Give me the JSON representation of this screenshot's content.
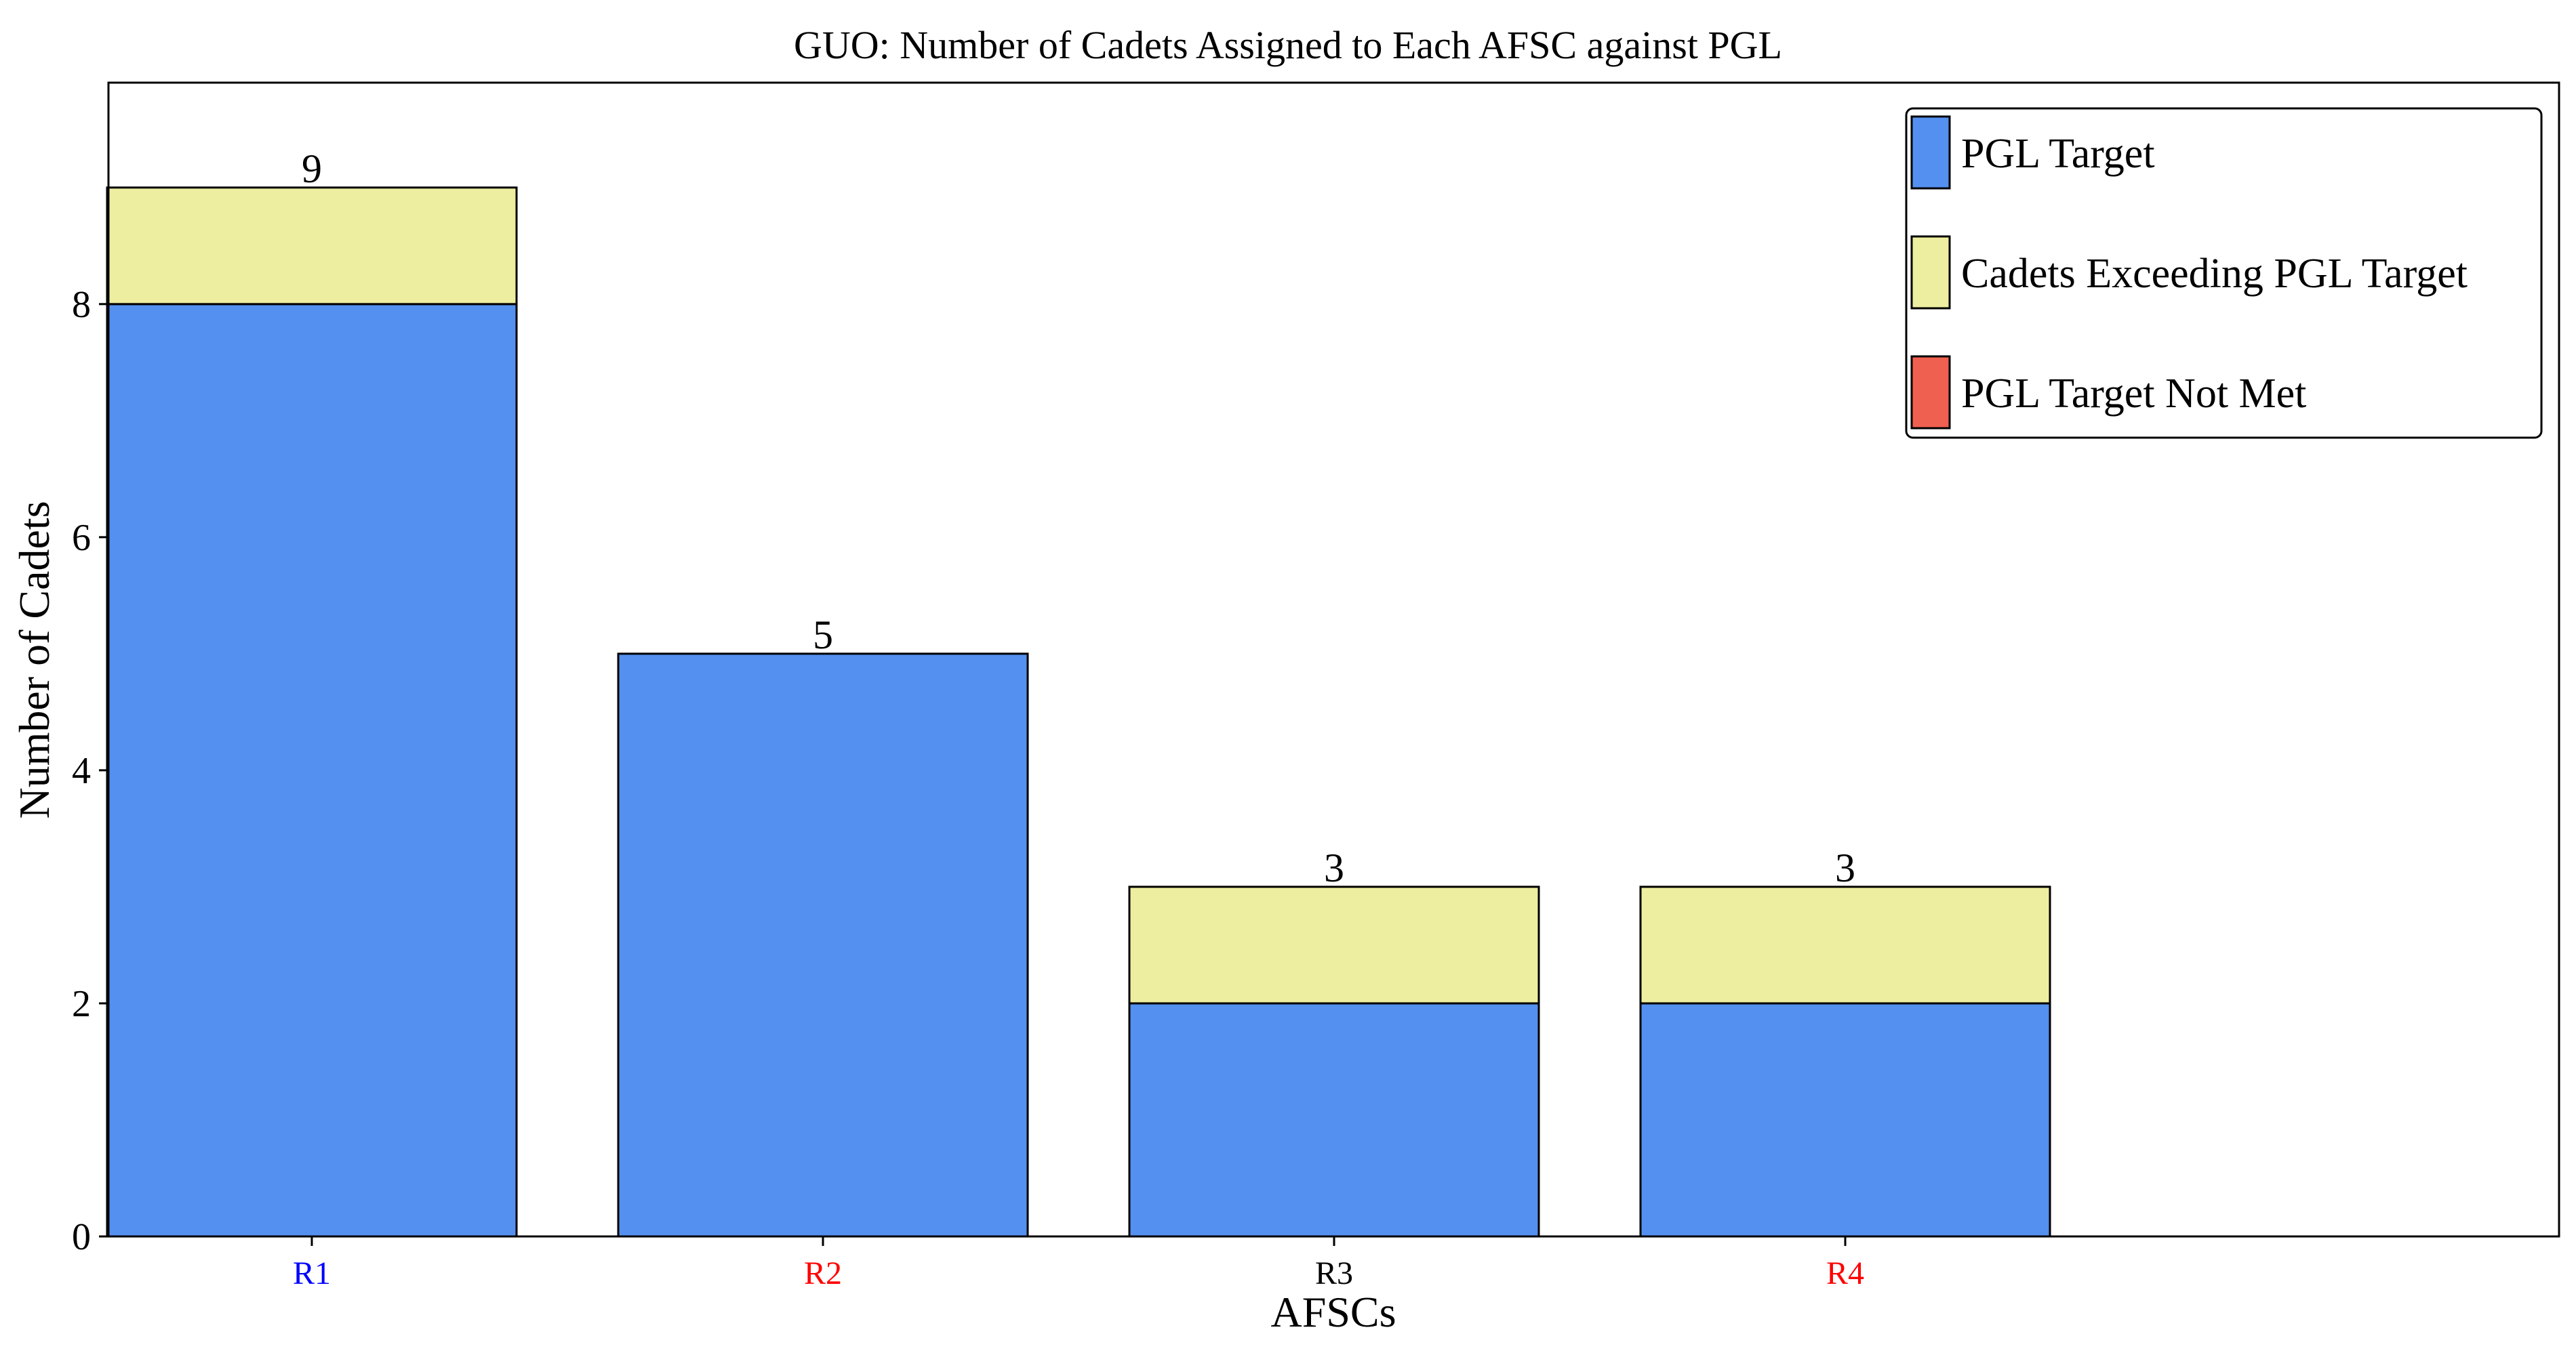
{
  "chart_data": {
    "type": "bar",
    "stacked": true,
    "title": "GUO: Number of Cadets Assigned to Each AFSC against PGL",
    "xlabel": "AFSCs",
    "ylabel": "Number of Cadets",
    "ylim": [
      0,
      9.9
    ],
    "yticks": [
      0,
      2,
      4,
      6,
      8
    ],
    "grid": false,
    "legend_position": "top-right",
    "categories": [
      "R1",
      "R2",
      "R3",
      "R4"
    ],
    "category_label_colors": [
      "#0000ff",
      "#ff0000",
      "#000000",
      "#ff0000"
    ],
    "series": [
      {
        "name": "PGL Target",
        "color": "#5490f0",
        "values": [
          8,
          5,
          2,
          2
        ]
      },
      {
        "name": "Cadets Exceeding PGL Target",
        "color": "#eeeea0",
        "values": [
          1,
          0,
          1,
          1
        ]
      },
      {
        "name": "PGL Target Not Met",
        "color": "#f06050",
        "values": [
          0,
          0,
          0,
          0
        ]
      }
    ],
    "totals": [
      9,
      5,
      3,
      3
    ]
  }
}
